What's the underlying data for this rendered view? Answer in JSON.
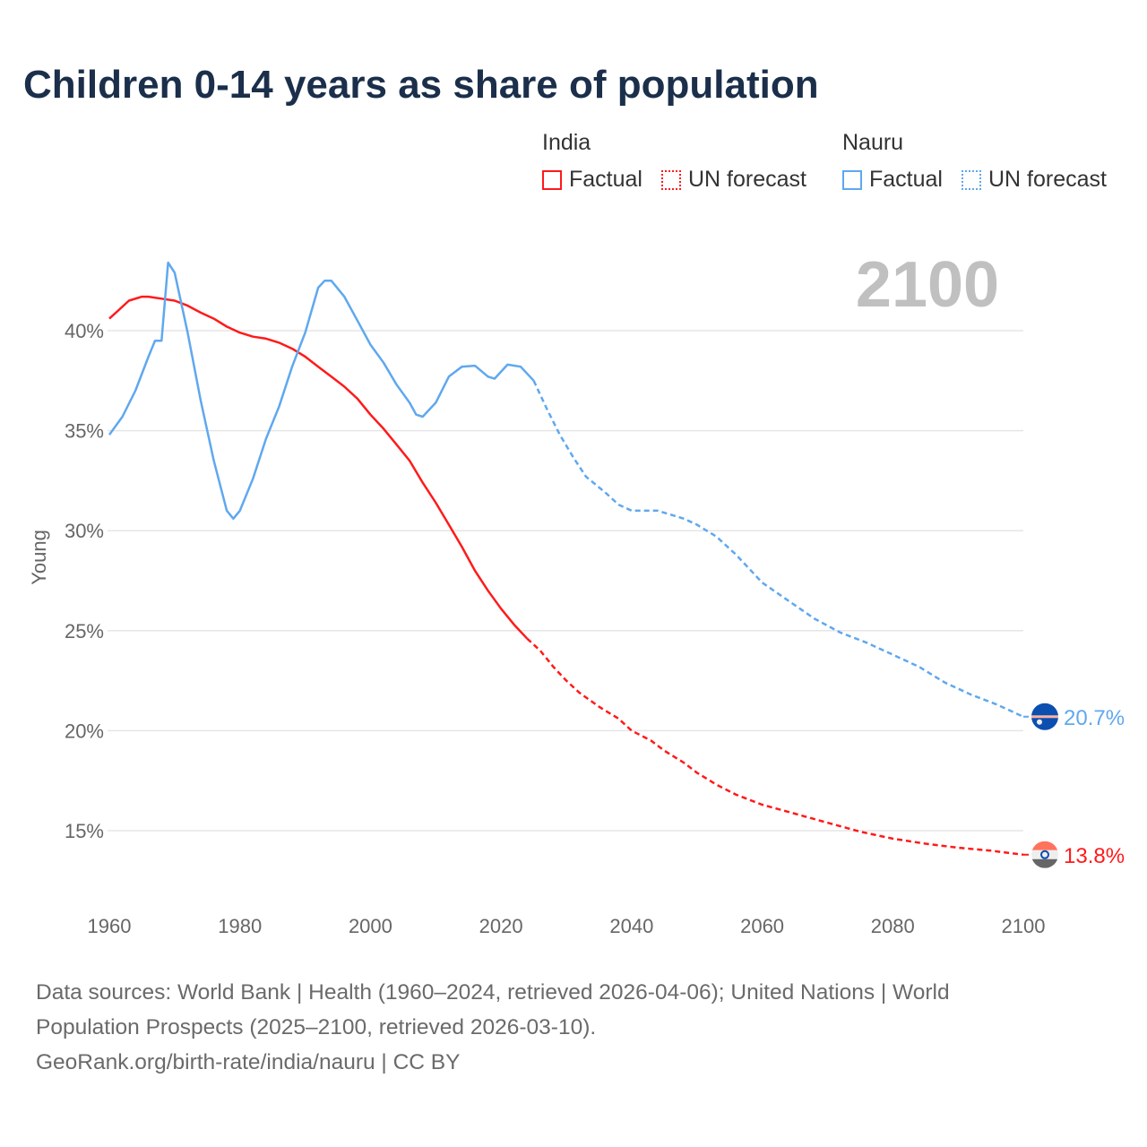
{
  "chart_data": {
    "type": "line",
    "title": "Children 0-14 years as share of population",
    "ylabel": "Young",
    "xlabel": "",
    "xlim": [
      1960,
      2100
    ],
    "ylim": [
      12.5,
      43.5
    ],
    "x_ticks": [
      "1960",
      "1980",
      "2000",
      "2020",
      "2040",
      "2060",
      "2080",
      "2100"
    ],
    "y_ticks": [
      "15%",
      "20%",
      "25%",
      "30%",
      "35%",
      "40%"
    ],
    "grid": true,
    "current_year_label": "2100",
    "legend": {
      "placement": "top-right",
      "groups": [
        {
          "name": "India",
          "items": [
            "Factual",
            "UN forecast"
          ]
        },
        {
          "name": "Nauru",
          "items": [
            "Factual",
            "UN forecast"
          ]
        }
      ]
    },
    "series": [
      {
        "name": "India",
        "color": "#ff1a1a",
        "end_label": "13.8%",
        "factual": [
          [
            1960,
            40.6
          ],
          [
            1963,
            41.5
          ],
          [
            1965,
            41.7
          ],
          [
            1966,
            41.7
          ],
          [
            1968,
            41.6
          ],
          [
            1970,
            41.5
          ],
          [
            1972,
            41.25
          ],
          [
            1974,
            40.9
          ],
          [
            1976,
            40.6
          ],
          [
            1978,
            40.2
          ],
          [
            1980,
            39.9
          ],
          [
            1982,
            39.7
          ],
          [
            1984,
            39.6
          ],
          [
            1986,
            39.4
          ],
          [
            1988,
            39.1
          ],
          [
            1990,
            38.7
          ],
          [
            1992,
            38.2
          ],
          [
            1994,
            37.7
          ],
          [
            1996,
            37.2
          ],
          [
            1998,
            36.6
          ],
          [
            2000,
            35.8
          ],
          [
            2002,
            35.1
          ],
          [
            2004,
            34.3
          ],
          [
            2006,
            33.5
          ],
          [
            2008,
            32.4
          ],
          [
            2010,
            31.4
          ],
          [
            2012,
            30.3
          ],
          [
            2014,
            29.2
          ],
          [
            2016,
            28.0
          ],
          [
            2018,
            27.0
          ],
          [
            2020,
            26.1
          ],
          [
            2022,
            25.3
          ],
          [
            2024,
            24.6
          ]
        ],
        "forecast": [
          [
            2024,
            24.6
          ],
          [
            2026,
            24.0
          ],
          [
            2028,
            23.2
          ],
          [
            2030,
            22.5
          ],
          [
            2032,
            21.9
          ],
          [
            2035,
            21.2
          ],
          [
            2038,
            20.6
          ],
          [
            2040,
            20.0
          ],
          [
            2043,
            19.5
          ],
          [
            2045,
            19.0
          ],
          [
            2048,
            18.4
          ],
          [
            2050,
            17.9
          ],
          [
            2053,
            17.3
          ],
          [
            2056,
            16.8
          ],
          [
            2060,
            16.3
          ],
          [
            2065,
            15.85
          ],
          [
            2070,
            15.4
          ],
          [
            2075,
            14.95
          ],
          [
            2080,
            14.6
          ],
          [
            2085,
            14.35
          ],
          [
            2090,
            14.15
          ],
          [
            2095,
            14.0
          ],
          [
            2100,
            13.8
          ]
        ]
      },
      {
        "name": "Nauru",
        "color": "#5fa8ef",
        "end_label": "20.7%",
        "factual": [
          [
            1960,
            34.8
          ],
          [
            1962,
            35.7
          ],
          [
            1964,
            37.0
          ],
          [
            1966,
            38.7
          ],
          [
            1967,
            39.5
          ],
          [
            1968,
            39.5
          ],
          [
            1969,
            43.4
          ],
          [
            1970,
            42.9
          ],
          [
            1972,
            39.9
          ],
          [
            1974,
            36.5
          ],
          [
            1976,
            33.5
          ],
          [
            1978,
            31.0
          ],
          [
            1979,
            30.6
          ],
          [
            1980,
            31.0
          ],
          [
            1982,
            32.6
          ],
          [
            1984,
            34.6
          ],
          [
            1986,
            36.2
          ],
          [
            1988,
            38.2
          ],
          [
            1990,
            39.9
          ],
          [
            1992,
            42.15
          ],
          [
            1993,
            42.5
          ],
          [
            1994,
            42.5
          ],
          [
            1996,
            41.7
          ],
          [
            1998,
            40.5
          ],
          [
            2000,
            39.3
          ],
          [
            2002,
            38.4
          ],
          [
            2004,
            37.3
          ],
          [
            2006,
            36.4
          ],
          [
            2007,
            35.8
          ],
          [
            2008,
            35.7
          ],
          [
            2010,
            36.4
          ],
          [
            2012,
            37.7
          ],
          [
            2014,
            38.2
          ],
          [
            2016,
            38.25
          ],
          [
            2018,
            37.7
          ],
          [
            2019,
            37.6
          ],
          [
            2021,
            38.3
          ],
          [
            2023,
            38.2
          ],
          [
            2025,
            37.5
          ]
        ],
        "forecast": [
          [
            2025,
            37.5
          ],
          [
            2027,
            36.1
          ],
          [
            2029,
            34.8
          ],
          [
            2031,
            33.7
          ],
          [
            2033,
            32.7
          ],
          [
            2036,
            31.9
          ],
          [
            2038,
            31.3
          ],
          [
            2040,
            31.0
          ],
          [
            2044,
            31.0
          ],
          [
            2048,
            30.6
          ],
          [
            2050,
            30.3
          ],
          [
            2053,
            29.7
          ],
          [
            2056,
            28.8
          ],
          [
            2060,
            27.4
          ],
          [
            2064,
            26.5
          ],
          [
            2068,
            25.6
          ],
          [
            2072,
            24.9
          ],
          [
            2076,
            24.4
          ],
          [
            2080,
            23.8
          ],
          [
            2084,
            23.2
          ],
          [
            2088,
            22.4
          ],
          [
            2092,
            21.8
          ],
          [
            2096,
            21.3
          ],
          [
            2100,
            20.7
          ]
        ]
      }
    ]
  },
  "footer": {
    "line1": "Data sources: World Bank | Health (1960–2024, retrieved 2026-04-06); United Nations | World",
    "line2": "Population Prospects (2025–2100, retrieved 2026-03-10).",
    "line3": "GeoRank.org/birth-rate/india/nauru | CC BY"
  }
}
